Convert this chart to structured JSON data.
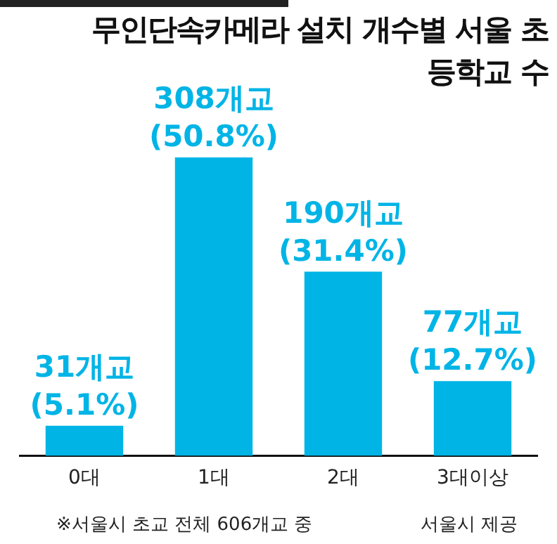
{
  "chart_data": {
    "type": "bar",
    "title": "무인단속카메라 설치 개수별 서울 초등학교 수",
    "categories": [
      "0대",
      "1대",
      "2대",
      "3대이상"
    ],
    "values": [
      31,
      308,
      190,
      77
    ],
    "color": "#00b4e6",
    "value_labels": [
      "31개교 (5.1%)",
      "308개교 (50.8%)",
      "190개교 (31.4%)",
      "77개교 (12.7%)"
    ],
    "annotations": [
      "※서울시 초교 전체 606개교 중",
      "서울시 제공"
    ]
  }
}
